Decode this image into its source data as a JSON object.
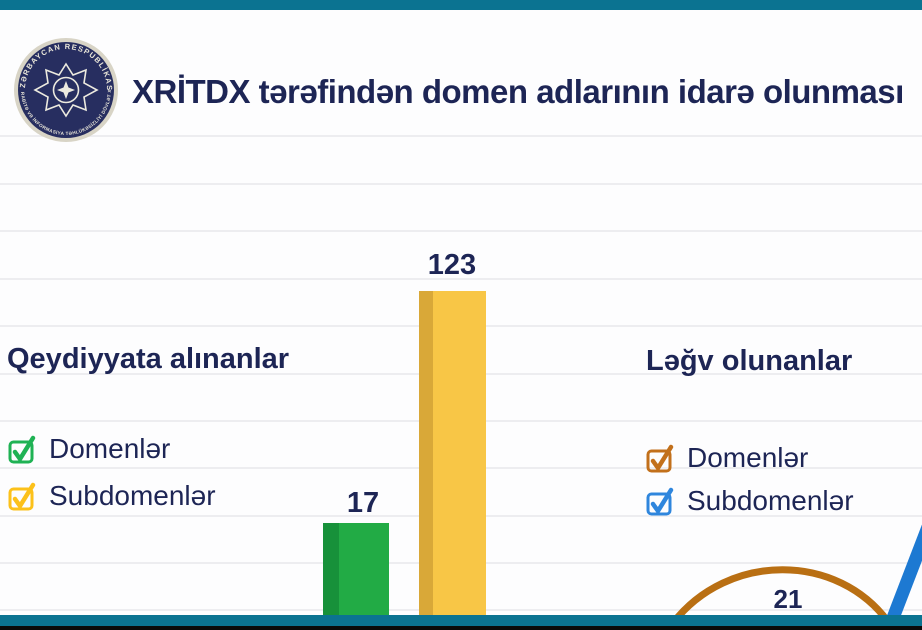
{
  "window": {
    "frame_color": "#0b7391",
    "edge_color": "#0a0a0a",
    "background": "#fdfdfe",
    "gridline_color": "#ededf0",
    "text_color": "#1d2555"
  },
  "header": {
    "title": "XRİTDX tərəfindən domen adlarının idarə olunması",
    "logo": {
      "ring_text_top": "AZƏRBAYCAN RESPUBLİKASI",
      "ring_text_bottom": "XÜSUSİ RABİTƏ VƏ İNFORMASİYA TƏHLÜKƏSİZLİYİ DÖVLƏT XİDMƏTİ"
    }
  },
  "chart_data": {
    "type": "bar",
    "title": "XRİTDX tərəfindən domen adlarının idarə olunması",
    "grid": true,
    "legend_position": "left-of-series",
    "sections": [
      {
        "heading": "Qeydiyyata alınanlar",
        "legend": [
          {
            "label": "Domenlər",
            "color": "#1fb254"
          },
          {
            "label": "Subdomenlər",
            "color": "#fcc11a"
          }
        ],
        "values": [
          {
            "series": "Domenlər",
            "value": 17,
            "mark": "bar",
            "bar_color": "#22ab45",
            "bar_color_dark": "#17913a"
          },
          {
            "series": "Subdomenlər",
            "value": 123,
            "mark": "bar",
            "bar_color": "#f8c646",
            "bar_color_dark": "#d9a838"
          }
        ]
      },
      {
        "heading": "Ləğv olunanlar",
        "legend": [
          {
            "label": "Domenlər",
            "color": "#c2701b"
          },
          {
            "label": "Subdomenlər",
            "color": "#2f86dd"
          }
        ],
        "values": [
          {
            "series": "Domenlər",
            "value": 21,
            "mark": "arc-curve",
            "color": "#b96f13"
          },
          {
            "series": "Subdomenlər",
            "value": null,
            "mark": "rising-line-cut-off-at-right-edge",
            "color": "#1d79d2"
          }
        ]
      }
    ]
  }
}
